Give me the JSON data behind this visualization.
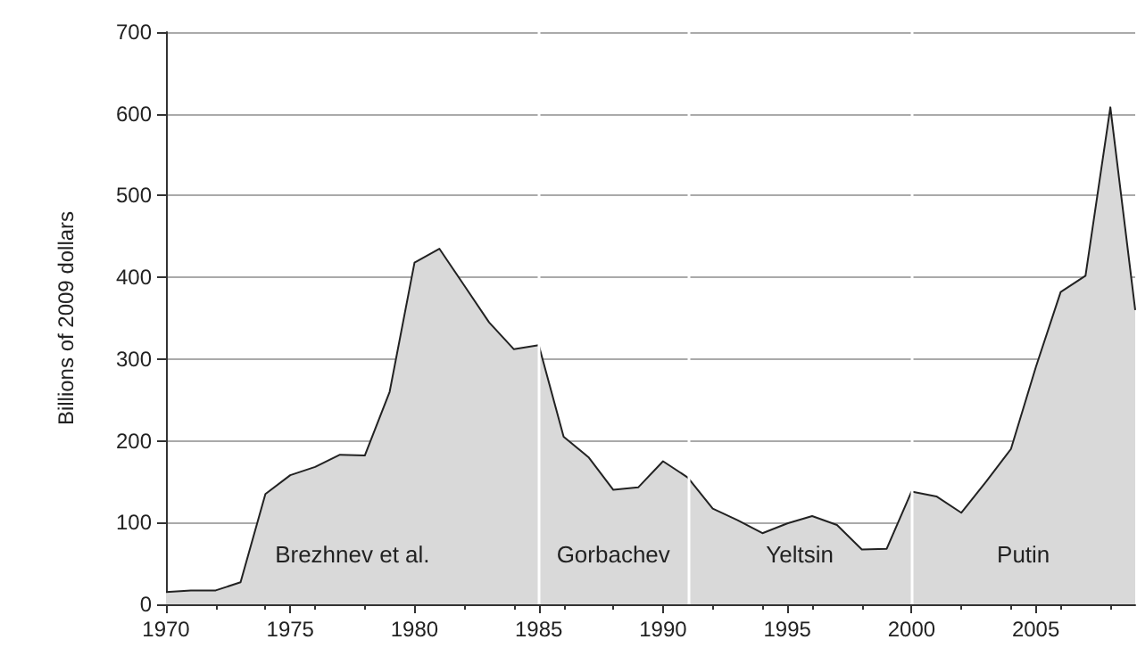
{
  "chart_data": {
    "type": "area",
    "ylabel": "Billions of 2009 dollars",
    "x": [
      1970,
      1971,
      1972,
      1973,
      1974,
      1975,
      1976,
      1977,
      1978,
      1979,
      1980,
      1981,
      1982,
      1983,
      1984,
      1985,
      1986,
      1987,
      1988,
      1989,
      1990,
      1991,
      1992,
      1993,
      1994,
      1995,
      1996,
      1997,
      1998,
      1999,
      2000,
      2001,
      2002,
      2003,
      2004,
      2005,
      2006,
      2007,
      2008,
      2009
    ],
    "series": [
      {
        "color": "#d9d9d9",
        "values": [
          15,
          17,
          17,
          27,
          135,
          158,
          168,
          183,
          182,
          260,
          418,
          435,
          390,
          345,
          312,
          317,
          205,
          180,
          140,
          143,
          175,
          155,
          117,
          103,
          87,
          99,
          108,
          97,
          67,
          68,
          138,
          132,
          112,
          150,
          190,
          290,
          382,
          402,
          608,
          360
        ]
      }
    ],
    "xlim": [
      1970,
      2009
    ],
    "xticks": [
      1970,
      1975,
      1980,
      1985,
      1990,
      1995,
      2000,
      2005
    ],
    "ylim": [
      0,
      700
    ],
    "yticks": [
      0,
      100,
      200,
      300,
      400,
      500,
      600,
      700
    ],
    "grid": "y",
    "marker": "none",
    "line_style": "solid",
    "ref_lines": [
      {
        "axis": "x",
        "value": 1985,
        "color": "#ffffff"
      },
      {
        "axis": "x",
        "value": 1991,
        "color": "#ffffff"
      },
      {
        "axis": "x",
        "value": 2000,
        "color": "#ffffff"
      }
    ],
    "annotations": [
      "Brezhnev et al.",
      "Gorbachev",
      "Yeltsin",
      "Putin"
    ]
  }
}
